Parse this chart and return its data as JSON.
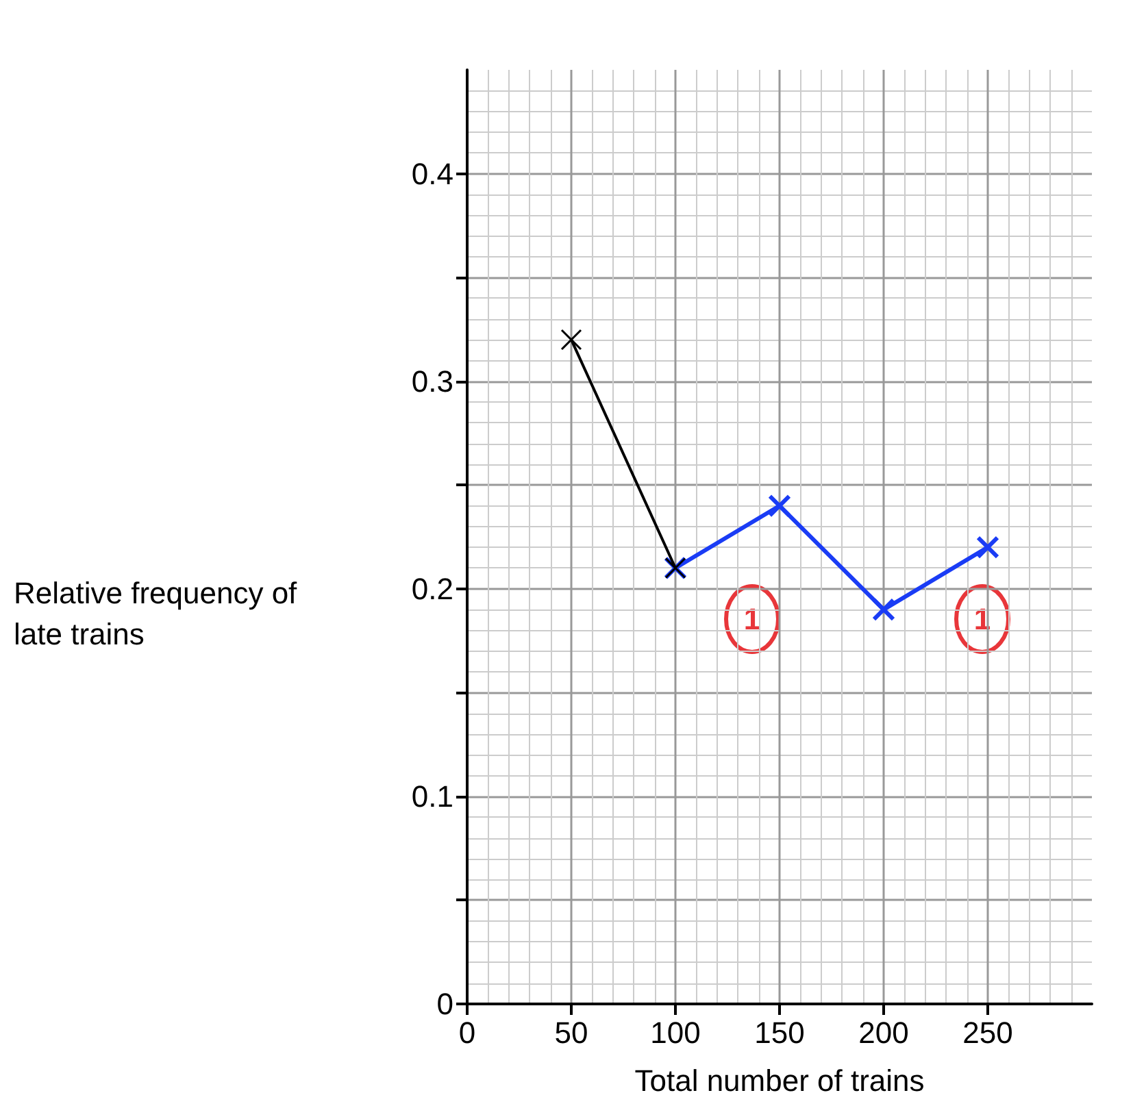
{
  "chart_data": {
    "type": "line",
    "xlabel": "Total number of trains",
    "ylabel": "Relative frequency of late trains",
    "xlim": [
      0,
      300
    ],
    "xticks": [
      0,
      50,
      100,
      150,
      200,
      250
    ],
    "ylim": [
      0,
      0.45
    ],
    "yticks": [
      0,
      {
        "value": 0.05,
        "label": null
      },
      0.1,
      {
        "value": 0.15,
        "label": null
      },
      0.2,
      {
        "value": 0.25,
        "label": null
      },
      0.3,
      {
        "value": 0.35,
        "label": null
      },
      0.4
    ],
    "series": [
      {
        "color": "#000000",
        "x": [
          50,
          100
        ],
        "values": [
          0.32,
          0.21
        ]
      },
      {
        "color": "#1a3cf5",
        "x": [
          100,
          150,
          200,
          250
        ],
        "values": [
          0.21,
          0.24,
          0.19,
          0.22
        ]
      }
    ],
    "marker": "cross",
    "line_style": "solid",
    "grid": true,
    "annotations": [
      "1",
      "1"
    ]
  }
}
